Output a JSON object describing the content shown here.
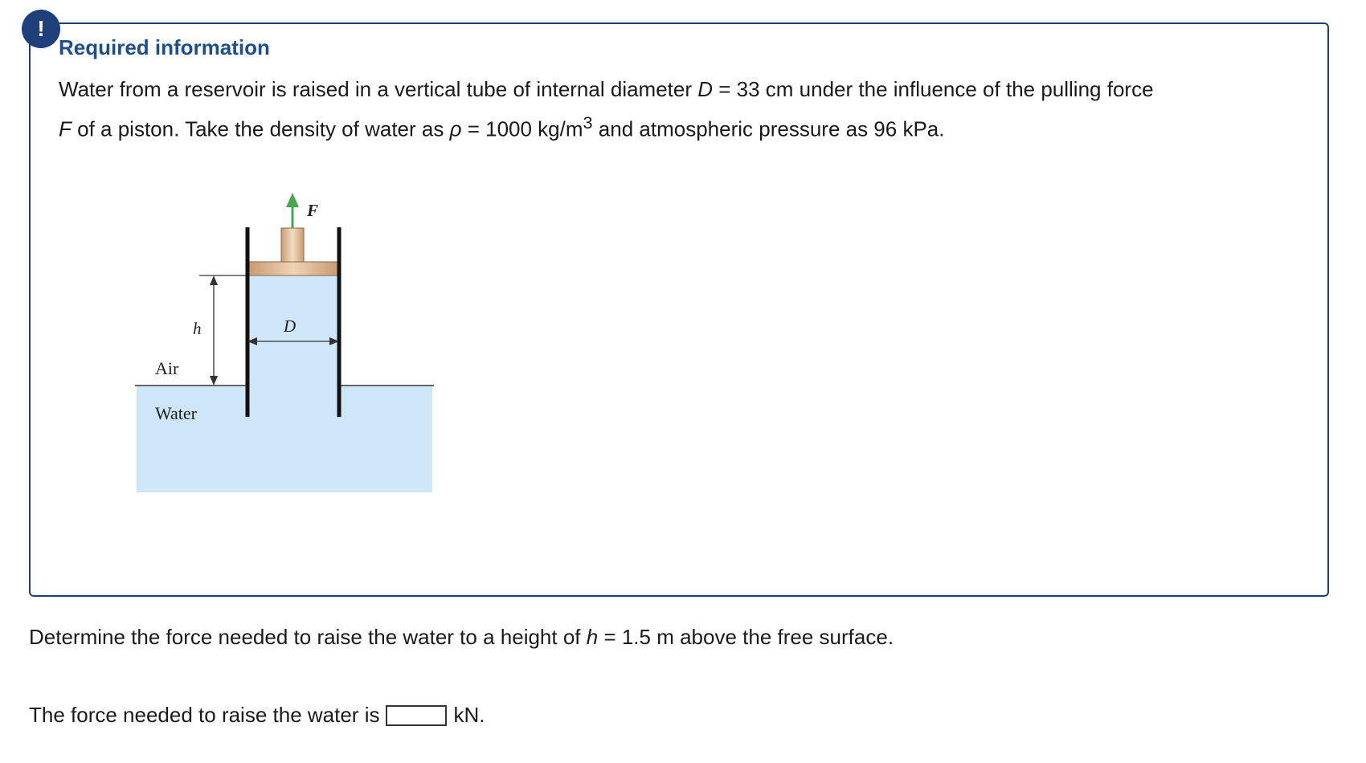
{
  "alert": {
    "icon": "exclamation-icon",
    "symbol": "!",
    "color": "#1f3f7a"
  },
  "info": {
    "title": "Required information",
    "line1_pre": "Water from a reservoir is raised in a vertical tube of internal diameter ",
    "line1_var": "D",
    "line1_eq": " = 33 cm under the influence of the pulling force",
    "line2_var": "F",
    "line2_mid": " of a piston. Take the density of water as ",
    "line2_rho": "ρ",
    "line2_eq": " = 1000 kg/m",
    "line2_sup": "3",
    "line2_post": " and atmospheric pressure as 96 kPa."
  },
  "figure": {
    "force_label": "F",
    "height_label": "h",
    "diameter_label": "D",
    "air_label": "Air",
    "water_label": "Water",
    "water_color": "#cfe6f8",
    "force_arrow_color": "#4aa64e"
  },
  "question": {
    "pre": "Determine the force needed to raise the water to a height of ",
    "var": "h",
    "post": " = 1.5 m above the free surface."
  },
  "answer": {
    "pre": "The force needed to raise the water is",
    "value": "",
    "unit": "kN."
  }
}
